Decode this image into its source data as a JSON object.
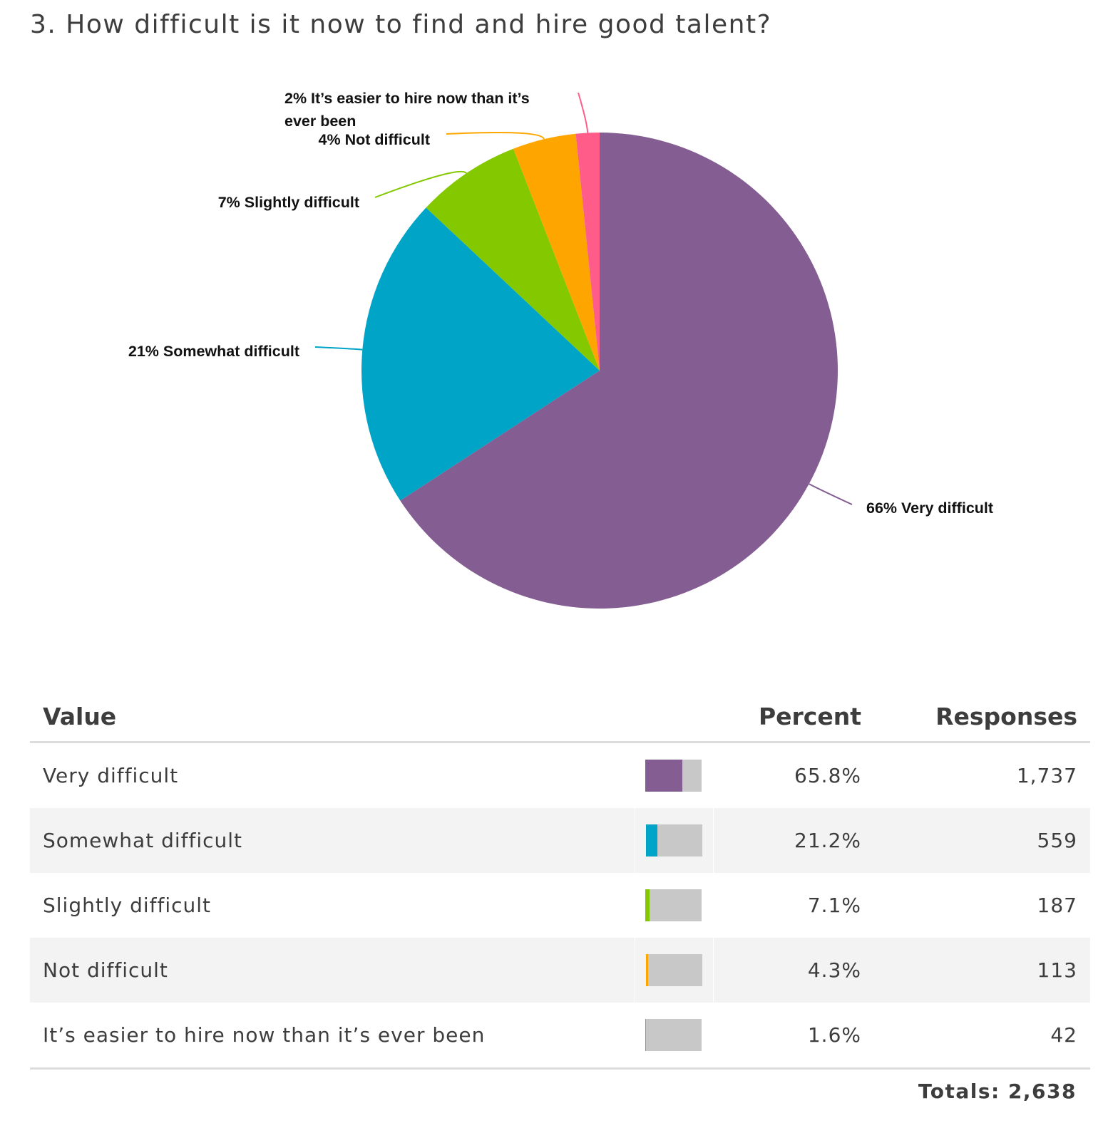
{
  "title": "3. How difficult is it now to find and hire good talent?",
  "chart_data": {
    "type": "pie",
    "start_angle_deg": 0,
    "direction": "clockwise",
    "slices": [
      {
        "label": "66% Very difficult",
        "category": "Very difficult",
        "value": 65.8,
        "color": "#845e92"
      },
      {
        "label": "21% Somewhat difficult",
        "category": "Somewhat difficult",
        "value": 21.2,
        "color": "#00a4c7"
      },
      {
        "label": "7% Slightly difficult",
        "category": "Slightly difficult",
        "value": 7.1,
        "color": "#84c800"
      },
      {
        "label": "4% Not difficult",
        "category": "Not difficult",
        "value": 4.3,
        "color": "#fea500"
      },
      {
        "label": "2% It’s easier to hire now than it’s ever been",
        "label_lines": [
          "2% It’s easier to hire now than it’s",
          "ever been"
        ],
        "category": "It’s easier to hire now than it’s ever been",
        "value": 1.6,
        "color": "#ff5c8a"
      }
    ]
  },
  "table": {
    "headers": {
      "value": "Value",
      "percent": "Percent",
      "responses": "Responses"
    },
    "rows": [
      {
        "value": "Very difficult",
        "percent": "65.8%",
        "fraction": 0.658,
        "responses": "1,737",
        "color": "#845e92"
      },
      {
        "value": "Somewhat difficult",
        "percent": "21.2%",
        "fraction": 0.212,
        "responses": "559",
        "color": "#00a4c7"
      },
      {
        "value": "Slightly difficult",
        "percent": "7.1%",
        "fraction": 0.071,
        "responses": "187",
        "color": "#84c800"
      },
      {
        "value": "Not difficult",
        "percent": "4.3%",
        "fraction": 0.043,
        "responses": "113",
        "color": "#fea500"
      },
      {
        "value": "It’s easier to hire now than it’s ever been",
        "percent": "1.6%",
        "fraction": 0.016,
        "responses": "42",
        "color": "#ff5c8a"
      }
    ],
    "totals": "Totals: 2,638"
  }
}
